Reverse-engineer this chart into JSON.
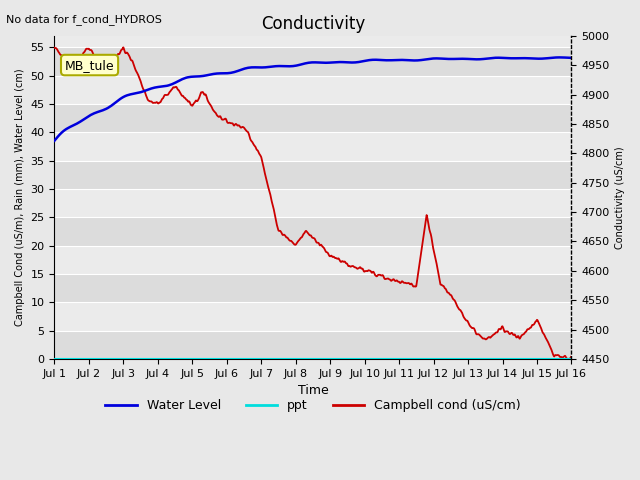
{
  "title": "Conductivity",
  "top_left_text": "No data for f_cond_HYDROS",
  "xlabel": "Time",
  "ylabel_left": "Campbell Cond (uS/m), Rain (mm), Water Level (cm)",
  "ylabel_right": "Conductivity (uS/cm)",
  "xlim": [
    0,
    15
  ],
  "ylim_left": [
    0,
    57
  ],
  "ylim_right": [
    4450,
    5000
  ],
  "xtick_labels": [
    "Jul 1",
    "Jul 2",
    "Jul 3",
    "Jul 4",
    "Jul 5",
    "Jul 6",
    "Jul 7",
    "Jul 8",
    "Jul 9",
    "Jul 10",
    "Jul 11",
    "Jul 12",
    "Jul 13",
    "Jul 14",
    "Jul 15",
    "Jul 16"
  ],
  "xtick_positions": [
    0,
    1,
    2,
    3,
    4,
    5,
    6,
    7,
    8,
    9,
    10,
    11,
    12,
    13,
    14,
    15
  ],
  "ytick_left": [
    0,
    5,
    10,
    15,
    20,
    25,
    30,
    35,
    40,
    45,
    50,
    55
  ],
  "ytick_right": [
    4450,
    4500,
    4550,
    4600,
    4650,
    4700,
    4750,
    4800,
    4850,
    4900,
    4950,
    5000
  ],
  "band_colors": [
    "#dcdcdc",
    "#ebebeb"
  ],
  "grid_line_color": "#ffffff",
  "annotation_box": {
    "text": "MB_tule",
    "facecolor": "#ffffcc",
    "edgecolor": "#aaaa00",
    "fontsize": 9
  },
  "water_level_color": "#0000dd",
  "water_level_linewidth": 1.8,
  "ppt_color": "#00dddd",
  "ppt_linewidth": 1.5,
  "campbell_color": "#cc0000",
  "campbell_linewidth": 1.3,
  "legend_water_level": "Water Level",
  "legend_ppt": "ppt",
  "legend_campbell": "Campbell cond (uS/cm)",
  "fig_bg_color": "#e8e8e8",
  "title_fontsize": 12,
  "label_fontsize": 7,
  "tick_fontsize": 8
}
